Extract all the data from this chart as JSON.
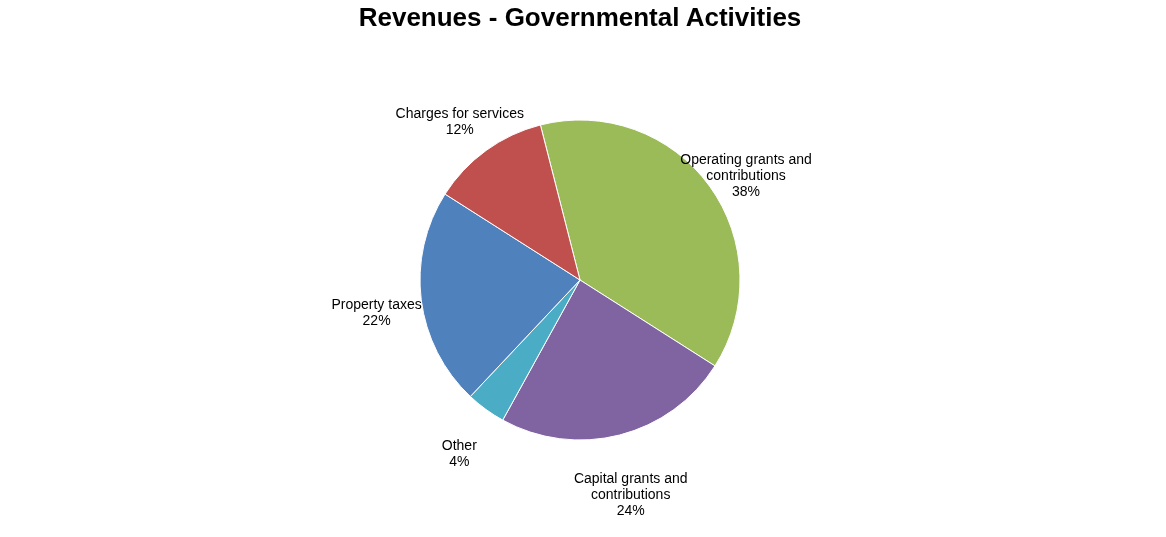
{
  "chart_data": {
    "type": "pie",
    "title": "Revenues - Governmental Activities",
    "categories": [
      "Operating grants and contributions",
      "Capital grants and contributions",
      "Other",
      "Property taxes",
      "Charges for services"
    ],
    "values": [
      38,
      24,
      4,
      22,
      12
    ],
    "colors": [
      "#9bbb59",
      "#8064a2",
      "#4bacc6",
      "#4f81bd",
      "#c0504d"
    ],
    "value_labels": [
      "38%",
      "24%",
      "4%",
      "22%",
      "12%"
    ],
    "legend": false
  }
}
